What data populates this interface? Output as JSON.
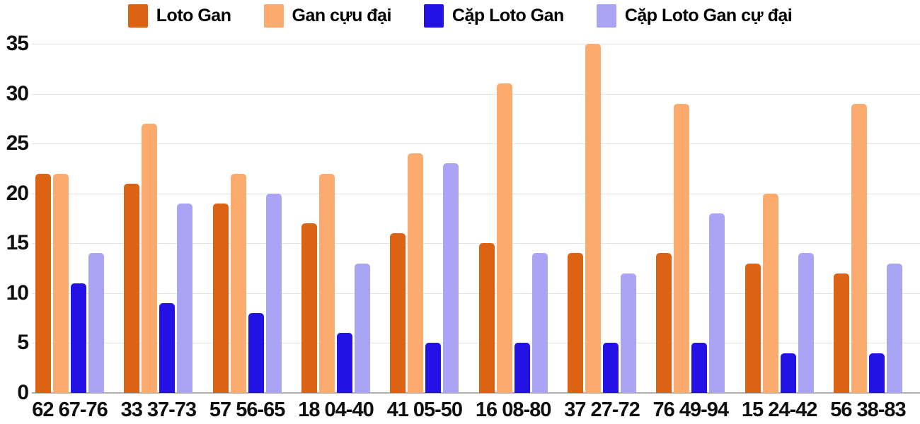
{
  "chart_data": {
    "type": "bar",
    "title": "",
    "xlabel": "",
    "ylabel": "",
    "categories": [
      "62 67-76",
      "33 37-73",
      "57 56-65",
      "18 04-40",
      "41 05-50",
      "16 08-80",
      "37 27-72",
      "76 49-94",
      "15 24-42",
      "56 38-83"
    ],
    "series": [
      {
        "name": "Loto Gan",
        "color": "#DD6314",
        "values": [
          22,
          21,
          19,
          17,
          16,
          15,
          14,
          14,
          13,
          12
        ]
      },
      {
        "name": "Gan cựu đại",
        "color": "#FBAB6D",
        "values": [
          22,
          27,
          22,
          22,
          24,
          31,
          35,
          29,
          20,
          29
        ]
      },
      {
        "name": "Cặp Loto Gan",
        "color": "#2412E4",
        "values": [
          11,
          9,
          8,
          6,
          5,
          5,
          5,
          5,
          4,
          4
        ]
      },
      {
        "name": "Cặp Loto Gan cự đại",
        "color": "#A9A4F4",
        "values": [
          14,
          19,
          20,
          13,
          23,
          14,
          12,
          18,
          14,
          13
        ]
      }
    ],
    "ylim": [
      0,
      35
    ],
    "yticks": [
      0,
      5,
      10,
      15,
      20,
      25,
      30,
      35
    ],
    "grid": true,
    "legend_position": "top"
  },
  "colors": {
    "grid": "#E4E4E4",
    "axis_line": "#AFAFAF",
    "text": "#0F0F0F",
    "background": "#FFFFFF"
  }
}
